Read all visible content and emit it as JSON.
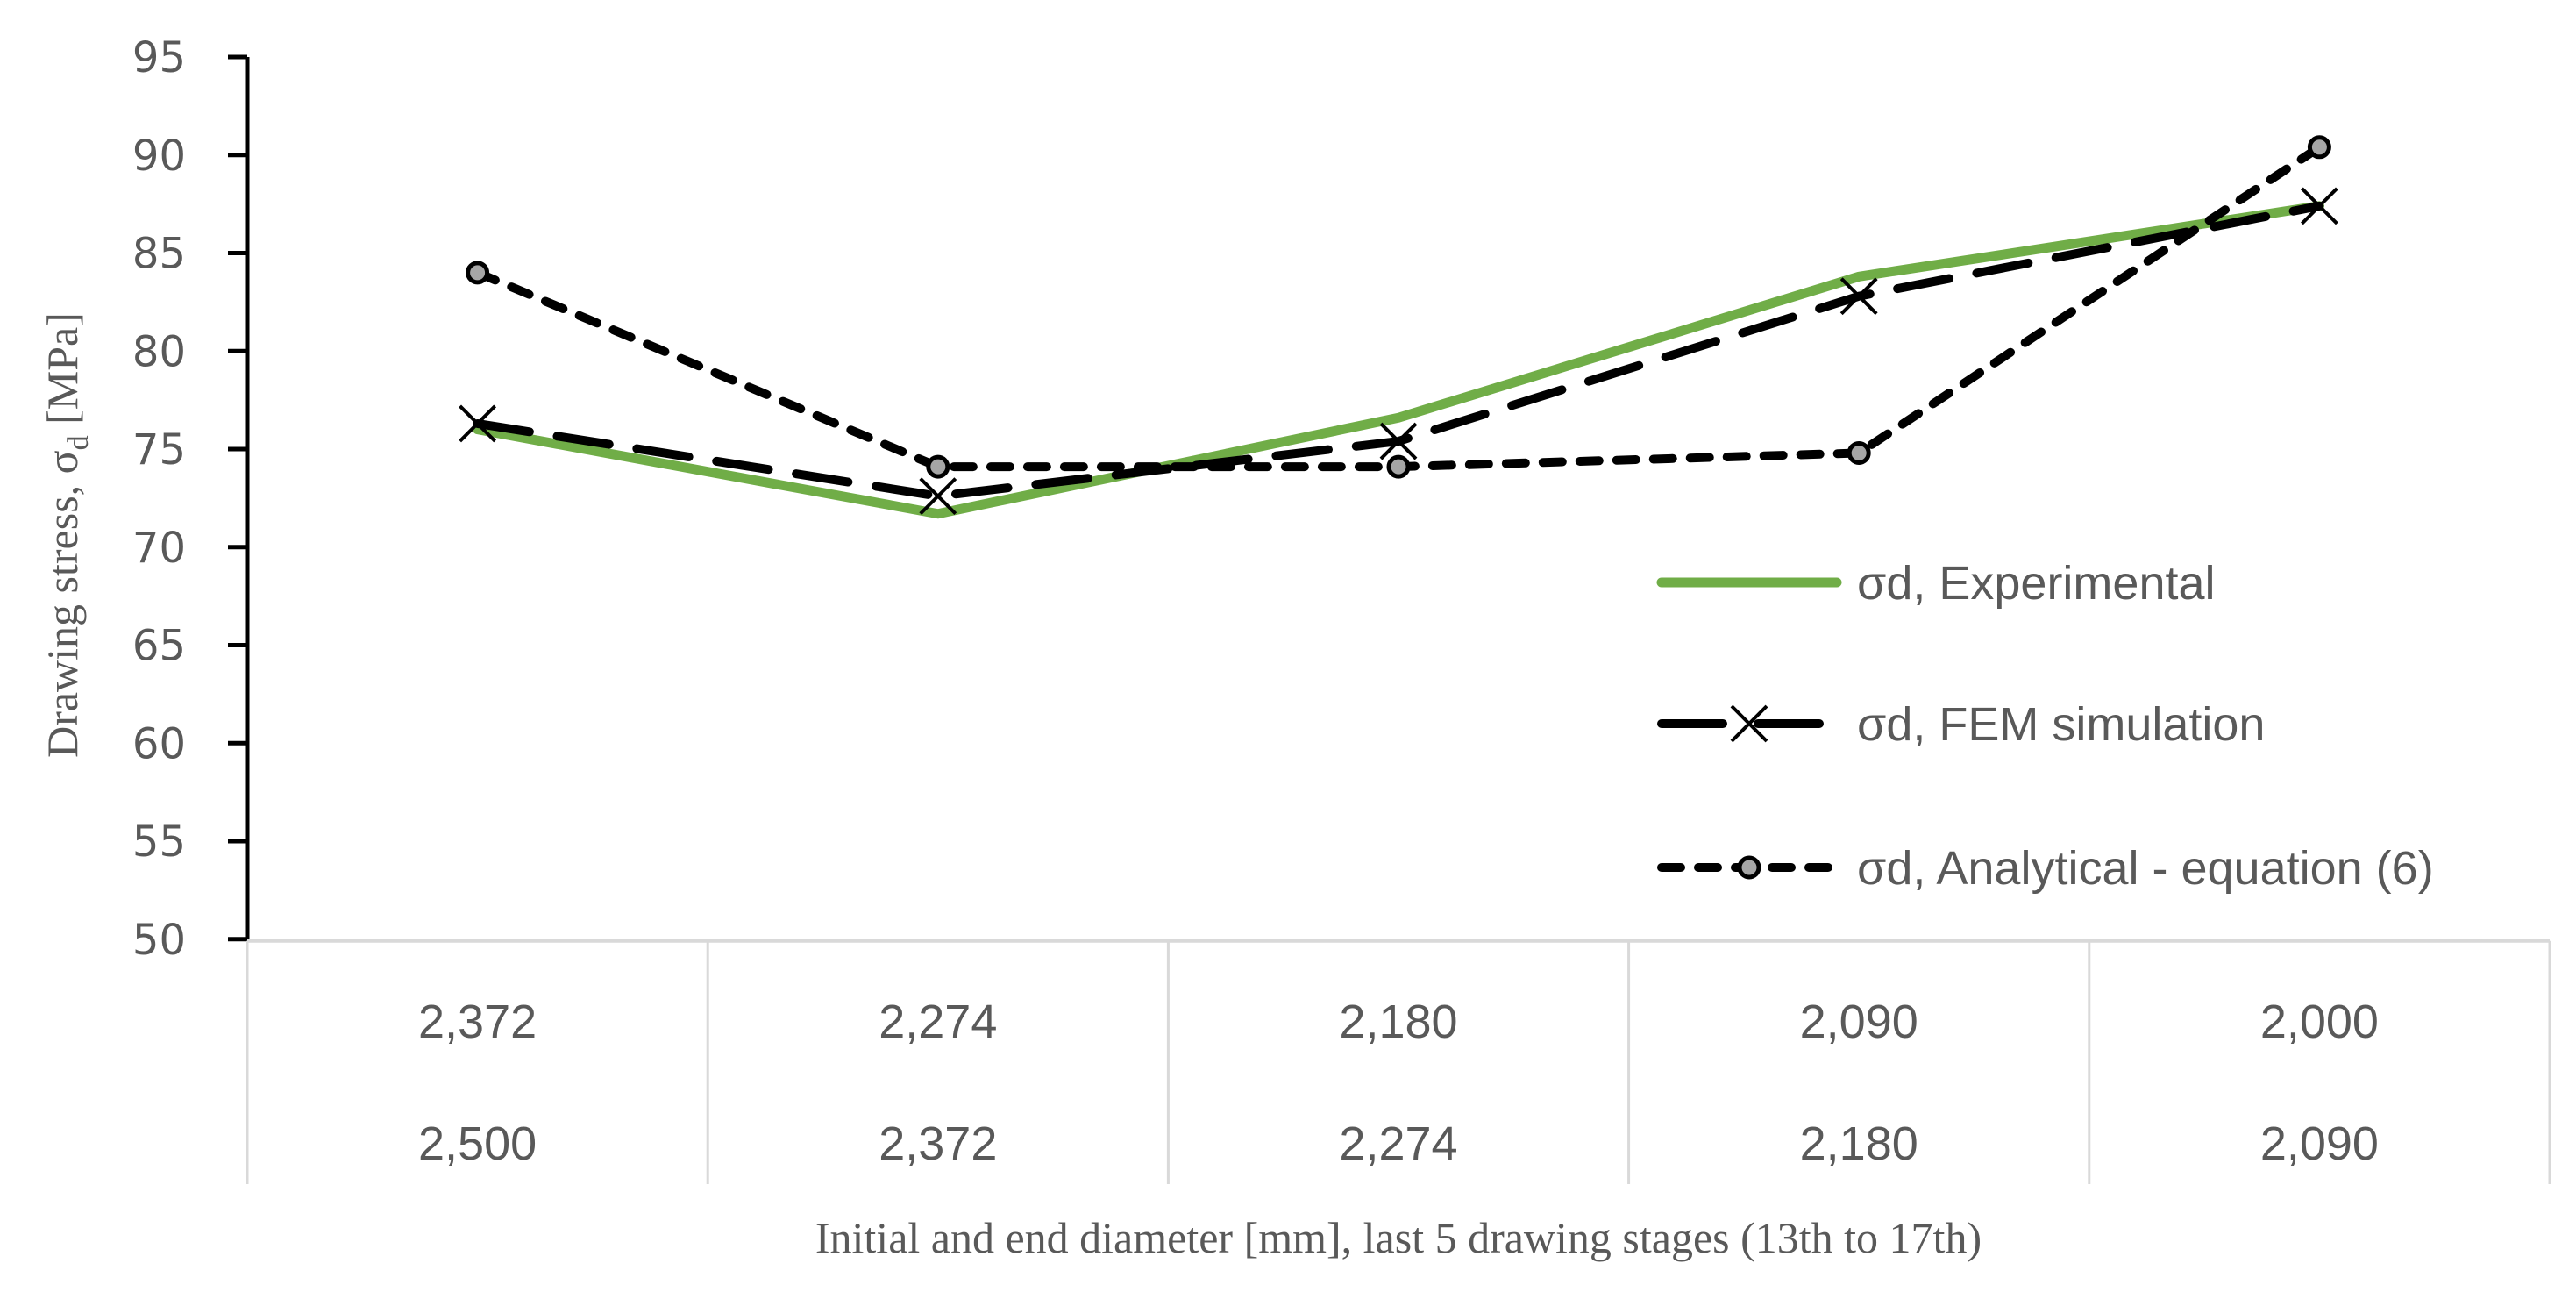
{
  "chart_data": {
    "type": "line",
    "title": "",
    "xlabel": "Initial and end diameter [mm], last 5 drawing stages (13th to 17th)",
    "ylabel": "Drawing stress, σd [MPa]",
    "ylabel_parts": {
      "main": "Drawing stress, σ",
      "sub": "d",
      "unit": " [MPa]"
    },
    "ylim": [
      50,
      95
    ],
    "yticks": [
      50,
      55,
      60,
      65,
      70,
      75,
      80,
      85,
      90,
      95
    ],
    "grid": false,
    "legend_position": "right-inside",
    "categories": [
      {
        "end": "2,372",
        "initial": "2,500"
      },
      {
        "end": "2,274",
        "initial": "2,372"
      },
      {
        "end": "2,180",
        "initial": "2,274"
      },
      {
        "end": "2,090",
        "initial": "2,180"
      },
      {
        "end": "2,000",
        "initial": "2,090"
      }
    ],
    "series": [
      {
        "name": "σd, Experimental",
        "color": "#70AD47",
        "style": "solid",
        "marker": "none",
        "values": [
          76.0,
          71.7,
          76.6,
          83.8,
          87.4
        ]
      },
      {
        "name": "σd, FEM simulation",
        "color": "#000000",
        "style": "long-dash",
        "marker": "x",
        "values": [
          76.3,
          72.6,
          75.4,
          82.8,
          87.4
        ]
      },
      {
        "name": "σd, Analytical - equation (6)",
        "color": "#000000",
        "style": "dash",
        "marker": "circle",
        "marker_fill": "#A6A6A6",
        "values": [
          84.0,
          74.1,
          74.1,
          74.8,
          90.4
        ]
      }
    ]
  }
}
